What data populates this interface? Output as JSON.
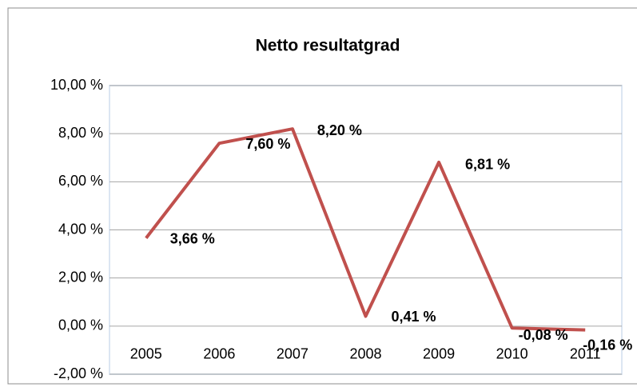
{
  "chart_data": {
    "type": "line",
    "title": "Netto resultatgrad",
    "categories": [
      "2005",
      "2006",
      "2007",
      "2008",
      "2009",
      "2010",
      "2011"
    ],
    "series": [
      {
        "name": "Netto resultatgrad",
        "color": "#c0504d",
        "values": [
          3.66,
          7.6,
          8.2,
          0.41,
          6.81,
          -0.08,
          -0.16
        ],
        "value_labels": [
          "3,66 %",
          "7,60 %",
          "8,20 %",
          "0,41 %",
          "6,81 %",
          "-0,08 %",
          "-0,16 %"
        ]
      }
    ],
    "ylim": [
      -2,
      10
    ],
    "yticks": [
      {
        "value": -2,
        "label": "-2,00 %"
      },
      {
        "value": 0,
        "label": "0,00 %"
      },
      {
        "value": 2,
        "label": "2,00 %"
      },
      {
        "value": 4,
        "label": "4,00 %"
      },
      {
        "value": 6,
        "label": "6,00 %"
      },
      {
        "value": 8,
        "label": "8,00 %"
      },
      {
        "value": 10,
        "label": "10,00 %"
      }
    ],
    "grid": true
  }
}
